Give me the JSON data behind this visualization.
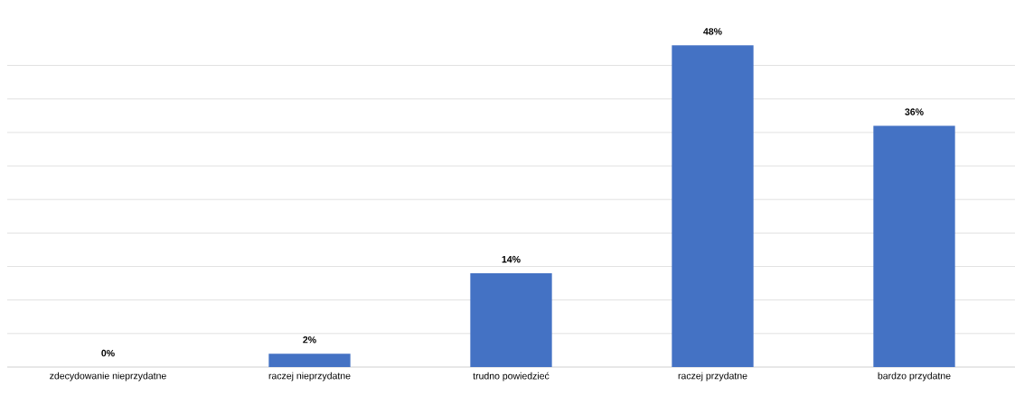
{
  "chart_data": {
    "type": "bar",
    "categories": [
      "zdecydowanie nieprzydatne",
      "raczej nieprzydatne",
      "trudno powiedzieć",
      "raczej przydatne",
      "bardzo przydatne"
    ],
    "values": [
      0,
      2,
      14,
      48,
      36
    ],
    "value_labels": [
      "0%",
      "2%",
      "14%",
      "48%",
      "36%"
    ],
    "color": "#4472c4",
    "tick_labels": "x",
    "grid": "y"
  }
}
